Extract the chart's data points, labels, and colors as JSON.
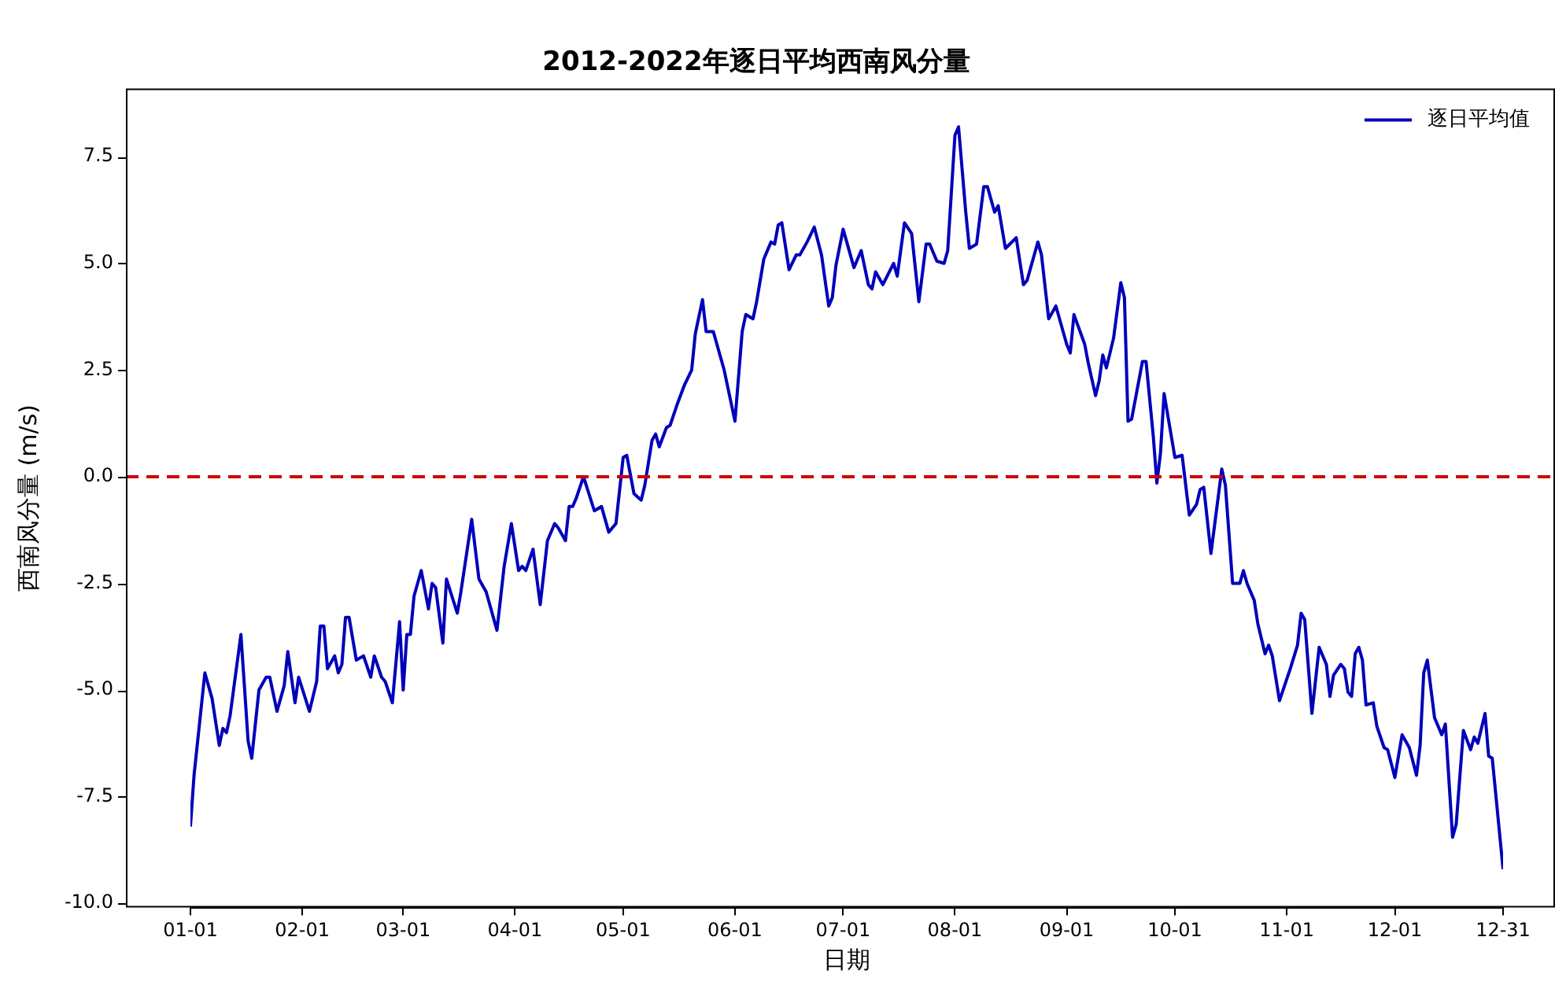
{
  "chart_data": {
    "type": "line",
    "title": "2012-2022年逐日平均西南风分量",
    "xlabel": "日期",
    "ylabel": "西南风分量 (m/s)",
    "xlim": [
      "--01-01",
      "--12-31"
    ],
    "xticks": [
      {
        "value": "--01-01",
        "label": "01-01"
      },
      {
        "value": "--02-01",
        "label": "02-01"
      },
      {
        "value": "--03-01",
        "label": "03-01"
      },
      {
        "value": "--04-01",
        "label": "04-01"
      },
      {
        "value": "--05-01",
        "label": "05-01"
      },
      {
        "value": "--06-01",
        "label": "06-01"
      },
      {
        "value": "--07-01",
        "label": "07-01"
      },
      {
        "value": "--08-01",
        "label": "08-01"
      },
      {
        "value": "--09-01",
        "label": "09-01"
      },
      {
        "value": "--10-01",
        "label": "10-01"
      },
      {
        "value": "--11-01",
        "label": "11-01"
      },
      {
        "value": "--12-01",
        "label": "12-01"
      },
      {
        "value": "--12-31",
        "label": "12-31"
      }
    ],
    "ylim": [
      -10.1,
      9.1
    ],
    "yticks": [
      {
        "value": -10,
        "label": "-10.0"
      },
      {
        "value": -7.5,
        "label": "-7.5"
      },
      {
        "value": -5,
        "label": "-5.0"
      },
      {
        "value": -2.5,
        "label": "-2.5"
      },
      {
        "value": 0,
        "label": "0.0"
      },
      {
        "value": 2.5,
        "label": "2.5"
      },
      {
        "value": 5,
        "label": "5.0"
      },
      {
        "value": 7.5,
        "label": "7.5"
      }
    ],
    "grid": false,
    "legend": "top right",
    "ref_lines": [
      {
        "axis": "y",
        "value": 0,
        "color": "#cc0000",
        "line_style": "dashed"
      }
    ],
    "series": [
      {
        "name": "逐日平均值",
        "color": "#0000bb",
        "x": [
          "--01-01",
          "--01-02",
          "--01-05",
          "--01-07",
          "--01-09",
          "--01-10",
          "--01-11",
          "--01-12",
          "--01-15",
          "--01-17",
          "--01-18",
          "--01-20",
          "--01-22",
          "--01-23",
          "--01-25",
          "--01-27",
          "--01-28",
          "--01-30",
          "--01-31",
          "--02-03",
          "--02-05",
          "--02-06",
          "--02-07",
          "--02-08",
          "--02-10",
          "--02-11",
          "--02-12",
          "--02-13",
          "--02-14",
          "--02-16",
          "--02-18",
          "--02-20",
          "--02-21",
          "--02-23",
          "--02-24",
          "--02-26",
          "--02-28",
          "--03-01",
          "--03-02",
          "--03-03",
          "--03-04",
          "--03-06",
          "--03-08",
          "--03-09",
          "--03-10",
          "--03-12",
          "--03-13",
          "--03-16",
          "--03-17",
          "--03-20",
          "--03-22",
          "--03-24",
          "--03-27",
          "--03-29",
          "--03-31",
          "--04-02",
          "--04-03",
          "--04-04",
          "--04-06",
          "--04-08",
          "--04-10",
          "--04-12",
          "--04-13",
          "--04-15",
          "--04-16",
          "--04-17",
          "--04-18",
          "--04-20",
          "--04-23",
          "--04-25",
          "--04-27",
          "--04-29",
          "--05-01",
          "--05-02",
          "--05-04",
          "--05-06",
          "--05-07",
          "--05-09",
          "--05-10",
          "--05-11",
          "--05-13",
          "--05-14",
          "--05-16",
          "--05-18",
          "--05-20",
          "--05-21",
          "--05-23",
          "--05-24",
          "--05-26",
          "--05-29",
          "--06-01",
          "--06-03",
          "--06-04",
          "--06-06",
          "--06-07",
          "--06-09",
          "--06-11",
          "--06-12",
          "--06-13",
          "--06-14",
          "--06-16",
          "--06-18",
          "--06-19",
          "--06-21",
          "--06-23",
          "--06-25",
          "--06-27",
          "--06-28",
          "--06-29",
          "--07-01",
          "--07-04",
          "--07-06",
          "--07-08",
          "--07-09",
          "--07-10",
          "--07-12",
          "--07-15",
          "--07-16",
          "--07-18",
          "--07-20",
          "--07-22",
          "--07-24",
          "--07-25",
          "--07-27",
          "--07-29",
          "--07-30",
          "--08-01",
          "--08-02",
          "--08-04",
          "--08-05",
          "--08-07",
          "--08-09",
          "--08-10",
          "--08-12",
          "--08-13",
          "--08-15",
          "--08-18",
          "--08-20",
          "--08-21",
          "--08-24",
          "--08-25",
          "--08-27",
          "--08-29",
          "--09-01",
          "--09-02",
          "--09-03",
          "--09-06",
          "--09-07",
          "--09-09",
          "--09-10",
          "--09-11",
          "--09-12",
          "--09-14",
          "--09-16",
          "--09-17",
          "--09-18",
          "--09-19",
          "--09-22",
          "--09-23",
          "--09-25",
          "--09-26",
          "--09-27",
          "--09-28",
          "--10-01",
          "--10-03",
          "--10-05",
          "--10-07",
          "--10-08",
          "--10-09",
          "--10-11",
          "--10-14",
          "--10-15",
          "--10-17",
          "--10-19",
          "--10-20",
          "--10-21",
          "--10-23",
          "--10-24",
          "--10-26",
          "--10-27",
          "--10-28",
          "--10-30",
          "--11-02",
          "--11-04",
          "--11-05",
          "--11-06",
          "--11-08",
          "--11-10",
          "--11-12",
          "--11-13",
          "--11-14",
          "--11-16",
          "--11-17",
          "--11-18",
          "--11-19",
          "--11-20",
          "--11-21",
          "--11-22",
          "--11-23",
          "--11-25",
          "--11-26",
          "--11-28",
          "--11-29",
          "--12-01",
          "--12-03",
          "--12-05",
          "--12-07",
          "--12-08",
          "--12-09",
          "--12-10",
          "--12-12",
          "--12-14",
          "--12-15",
          "--12-17",
          "--12-18",
          "--12-20",
          "--12-22",
          "--12-23",
          "--12-24",
          "--12-26",
          "--12-27",
          "--12-28",
          "--12-31"
        ],
        "values": [
          -8.2,
          -7.0,
          -4.6,
          -5.2,
          -6.3,
          -5.9,
          -6.0,
          -5.6,
          -3.7,
          -6.2,
          -6.6,
          -5.0,
          -4.7,
          -4.7,
          -5.5,
          -4.9,
          -4.1,
          -5.3,
          -4.7,
          -5.5,
          -4.8,
          -3.5,
          -3.5,
          -4.5,
          -4.2,
          -4.6,
          -4.4,
          -3.3,
          -3.3,
          -4.3,
          -4.2,
          -4.7,
          -4.2,
          -4.7,
          -4.8,
          -5.3,
          -3.4,
          -5.0,
          -3.7,
          -3.7,
          -2.8,
          -2.2,
          -3.1,
          -2.5,
          -2.6,
          -3.9,
          -2.4,
          -3.2,
          -2.7,
          -1.0,
          -2.4,
          -2.7,
          -3.6,
          -2.1,
          -1.1,
          -2.2,
          -2.1,
          -2.2,
          -1.7,
          -3.0,
          -1.5,
          -1.1,
          -1.2,
          -1.5,
          -0.7,
          -0.7,
          -0.5,
          0.0,
          -0.8,
          -0.7,
          -1.3,
          -1.1,
          0.45,
          0.5,
          -0.4,
          -0.55,
          -0.2,
          0.85,
          1.0,
          0.7,
          1.15,
          1.2,
          1.7,
          2.15,
          2.5,
          3.35,
          4.15,
          3.4,
          3.4,
          2.5,
          1.3,
          3.4,
          3.8,
          3.7,
          4.1,
          5.1,
          5.5,
          5.45,
          5.9,
          5.95,
          4.85,
          5.2,
          5.2,
          5.5,
          5.85,
          5.2,
          4.0,
          4.2,
          4.95,
          5.8,
          4.9,
          5.3,
          4.5,
          4.4,
          4.8,
          4.5,
          5.0,
          4.7,
          5.95,
          5.7,
          4.1,
          5.45,
          5.45,
          5.05,
          5.0,
          5.3,
          8.0,
          8.2,
          6.2,
          5.35,
          5.45,
          6.8,
          6.8,
          6.2,
          6.35,
          5.35,
          5.6,
          4.5,
          4.6,
          5.5,
          5.2,
          3.7,
          4.0,
          3.1,
          2.9,
          3.8,
          3.1,
          2.65,
          1.9,
          2.25,
          2.85,
          2.55,
          3.25,
          4.55,
          4.2,
          1.3,
          1.35,
          2.7,
          2.7,
          0.95,
          -0.15,
          0.55,
          1.95,
          0.45,
          0.5,
          -0.9,
          -0.65,
          -0.3,
          -0.25,
          -1.8,
          0.18,
          -0.2,
          -2.5,
          -2.5,
          -2.2,
          -2.5,
          -2.9,
          -3.45,
          -4.15,
          -3.95,
          -4.2,
          -5.25,
          -4.5,
          -3.95,
          -3.2,
          -3.35,
          -5.55,
          -4.0,
          -4.4,
          -5.15,
          -4.65,
          -4.4,
          -4.5,
          -5.05,
          -5.15,
          -4.15,
          -4.0,
          -4.3,
          -5.35,
          -5.3,
          -5.85,
          -6.35,
          -6.4,
          -7.05,
          -6.05,
          -6.35,
          -7.0,
          -6.3,
          -4.6,
          -4.3,
          -5.65,
          -6.05,
          -5.8,
          -8.45,
          -8.15,
          -5.95,
          -6.4,
          -6.1,
          -6.25,
          -5.55,
          -6.55,
          -6.6,
          -9.2
        ]
      }
    ]
  }
}
